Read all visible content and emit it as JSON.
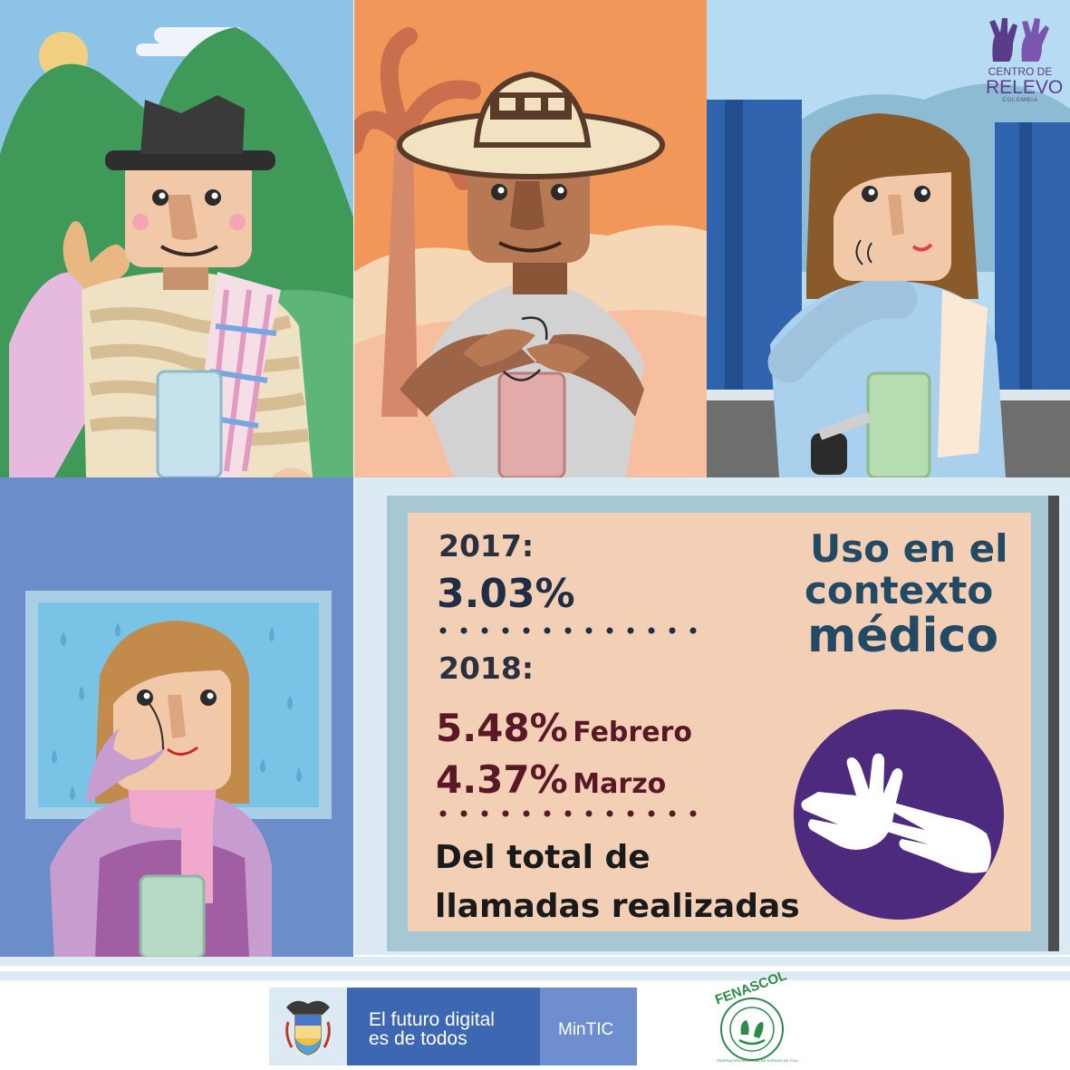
{
  "info": {
    "title_line1": "Uso en el",
    "title_line2": "contexto",
    "title_line3": "médico",
    "year_2017": "2017:",
    "value_2017": "3.03%",
    "year_2018": "2018:",
    "value_feb": "5.48%",
    "label_feb": "Febrero",
    "value_mar": "4.37%",
    "label_mar": "Marzo",
    "footnote_line1": "Del total de",
    "footnote_line2": "llamadas realizadas"
  },
  "logos": {
    "centro_line1": "CENTRO DE",
    "centro_line2": "RELEVO",
    "centro_line3": "COLOMBIA",
    "gov_line1": "El futuro digital",
    "gov_line2": "es de todos",
    "gov_brand": "MinTIC",
    "fenascol": "FENASCOL",
    "fenascol_sub": "FEDERACIÓN NACIONAL DE SORDOS DE COLOMBIA"
  },
  "colors": {
    "accent_purple": "#4e2a7e",
    "title_blue": "#224a64",
    "value_maroon": "#5a1826",
    "panel_peach": "#f3cfb6",
    "gov_blue": "#3e67b3"
  }
}
